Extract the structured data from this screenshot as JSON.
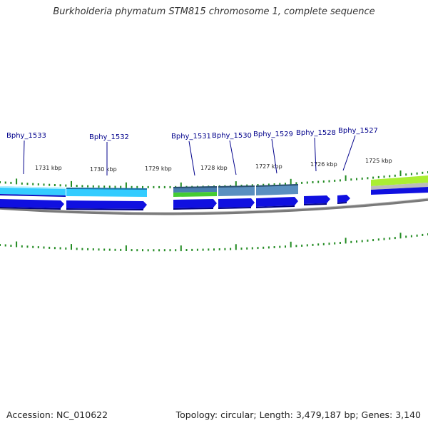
{
  "title": "Burkholderia phymatum STM815 chromosome 1, complete sequence",
  "footer": {
    "accession": "Accession: NC_010622",
    "summary": "Topology: circular; Length: 3,479,187 bp; Genes: 3,140"
  },
  "scale_labels": [
    "1731 kbp",
    "1730 kbp",
    "1729 kbp",
    "1728 kbp",
    "1727 kbp",
    "1726 kbp",
    "1725 kbp"
  ],
  "genes": [
    "Bphy_1533",
    "Bphy_1532",
    "Bphy_1531",
    "Bphy_1530",
    "Bphy_1529",
    "Bphy_1528",
    "Bphy_1527"
  ],
  "colors": {
    "gene_arrow": "#1010e0",
    "tick": "#228b22",
    "backbone": "#888888",
    "label": "#00008b",
    "band_cyan": "#33ccff",
    "band_steel": "#4a7fb0",
    "band_green": "#44cc33",
    "band_lime": "#aaee33"
  }
}
